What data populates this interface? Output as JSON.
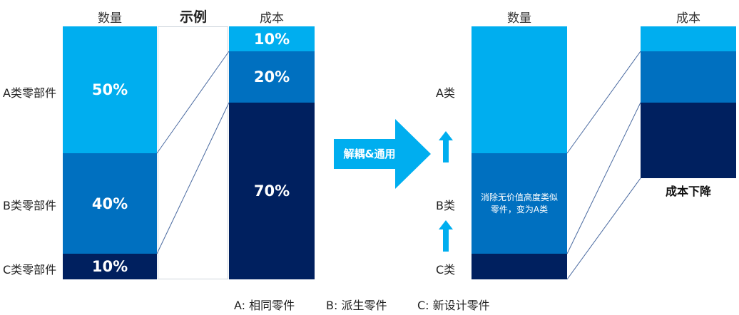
{
  "left": {
    "qty_header": "数量",
    "example_header": "示例",
    "cost_header": "成本",
    "row_labels": {
      "a": "A类零部件",
      "b": "B类零部件",
      "c": "C类零部件"
    },
    "qty_values": {
      "a": "50%",
      "b": "40%",
      "c": "10%"
    },
    "cost_values": {
      "a": "10%",
      "b": "20%",
      "c": "70%"
    }
  },
  "arrow": {
    "label": "解耦&通用"
  },
  "right": {
    "qty_header": "数量",
    "cost_header": "成本",
    "row_labels": {
      "a": "A类",
      "b": "B类",
      "c": "C类"
    },
    "note": "消除无价值高度类似零件，变为A类",
    "cost_caption": "成本下降"
  },
  "legend": {
    "a": "A: 相同零件",
    "b": "B: 派生零件",
    "c": "C: 新设计零件"
  },
  "colors": {
    "light": "#00AEEF",
    "mid": "#0070C0",
    "dark": "#00205F"
  }
}
